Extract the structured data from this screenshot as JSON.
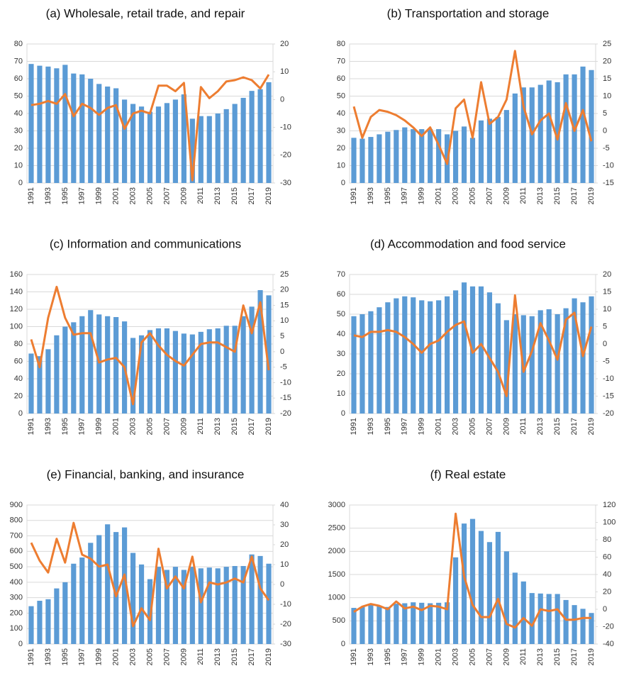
{
  "chart_data": [
    {
      "type": "combo",
      "title": "(a) Wholesale, retail trade, and repair",
      "categories": [
        "1991",
        null,
        "1993",
        null,
        "1995",
        null,
        "1997",
        null,
        "1999",
        null,
        "2001",
        null,
        "2003",
        null,
        "2005",
        null,
        "2007",
        null,
        "2009",
        null,
        "2011",
        null,
        "2013",
        null,
        "2015",
        null,
        "2017",
        null,
        "2019"
      ],
      "series": [
        {
          "color": "#5b9bd5",
          "values": [
            68.5,
            67.5,
            67,
            66,
            68,
            63,
            62.5,
            60,
            57,
            55.5,
            54.5,
            48,
            45.5,
            44,
            41,
            44,
            46,
            48,
            51,
            37,
            38.5,
            38.5,
            40,
            42.5,
            45.5,
            49,
            53,
            54,
            58
          ]
        },
        {
          "color": "#ed7d31",
          "axis": "y2",
          "values": [
            -2,
            -1.5,
            -0.5,
            -1.5,
            2,
            -6,
            -1.5,
            -3,
            -5.5,
            -3,
            -2,
            -10.5,
            -5,
            -4,
            -5,
            5,
            5,
            3,
            6,
            -29,
            4.5,
            0.5,
            3,
            6.5,
            7,
            8,
            7,
            4,
            9
          ]
        }
      ],
      "ylim": [
        0,
        80
      ],
      "yticks": [
        0,
        10,
        20,
        30,
        40,
        50,
        60,
        70,
        80
      ],
      "y2lim": [
        -30,
        20
      ],
      "y2ticks": [
        -30,
        -20,
        -10,
        0,
        10,
        20
      ],
      "grid": true
    },
    {
      "type": "combo",
      "title": "(b) Transportation and storage",
      "categories": [
        "1991",
        null,
        "1993",
        null,
        "1995",
        null,
        "1997",
        null,
        "1999",
        null,
        "2001",
        null,
        "2003",
        null,
        "2005",
        null,
        "2007",
        null,
        "2009",
        null,
        "2011",
        null,
        "2013",
        null,
        "2015",
        null,
        "2017",
        null,
        "2019"
      ],
      "series": [
        {
          "color": "#5b9bd5",
          "values": [
            26,
            25.5,
            26.5,
            28,
            29.5,
            30.5,
            32,
            31,
            31,
            31,
            31,
            28,
            30,
            32.5,
            26,
            36,
            37,
            38,
            42,
            51.5,
            55,
            55,
            56.5,
            59,
            58,
            62.5,
            62.5,
            67,
            65
          ]
        },
        {
          "color": "#ed7d31",
          "axis": "y2",
          "values": [
            7,
            -2,
            4,
            6,
            5.5,
            4.5,
            3,
            1,
            -1.5,
            1,
            -4,
            -9.5,
            6.5,
            9,
            -2,
            14,
            2,
            4,
            9,
            23,
            7,
            -1,
            3,
            5,
            -2.5,
            8,
            0,
            6,
            -3
          ]
        }
      ],
      "ylim": [
        0,
        80
      ],
      "yticks": [
        0,
        10,
        20,
        30,
        40,
        50,
        60,
        70,
        80
      ],
      "y2lim": [
        -15,
        25
      ],
      "y2ticks": [
        -15,
        -10,
        -5,
        0,
        5,
        10,
        15,
        20,
        25
      ],
      "grid": true
    },
    {
      "type": "combo",
      "title": "(c) Information and communications",
      "categories": [
        "1991",
        null,
        "1993",
        null,
        "1995",
        null,
        "1997",
        null,
        "1999",
        null,
        "2001",
        null,
        "2003",
        null,
        "2005",
        null,
        "2007",
        null,
        "2009",
        null,
        "2011",
        null,
        "2013",
        null,
        "2015",
        null,
        "2017",
        null,
        "2019"
      ],
      "series": [
        {
          "color": "#5b9bd5",
          "values": [
            69,
            66,
            74,
            90,
            100,
            105,
            112,
            119,
            114,
            112,
            111,
            106,
            87,
            90,
            96,
            98,
            98,
            95,
            92,
            91,
            94,
            97,
            98,
            101,
            101,
            112,
            123,
            142,
            136
          ]
        },
        {
          "color": "#ed7d31",
          "axis": "y2",
          "values": [
            4,
            -5,
            11,
            21,
            11,
            5.5,
            6,
            6,
            -3.5,
            -2.5,
            -2,
            -5,
            -17,
            3,
            6,
            2,
            -1,
            -3,
            -4.5,
            -1,
            2.5,
            3,
            3,
            1.5,
            0,
            15,
            6,
            16,
            -6
          ]
        }
      ],
      "ylim": [
        0,
        160
      ],
      "yticks": [
        0,
        20,
        40,
        60,
        80,
        100,
        120,
        140,
        160
      ],
      "y2lim": [
        -20,
        25
      ],
      "y2ticks": [
        -20,
        -15,
        -10,
        -5,
        0,
        5,
        10,
        15,
        20,
        25
      ],
      "grid": true
    },
    {
      "type": "combo",
      "title": "(d) Accommodation and food service",
      "categories": [
        "1991",
        null,
        "1993",
        null,
        "1995",
        null,
        "1997",
        null,
        "1999",
        null,
        "2001",
        null,
        "2003",
        null,
        "2005",
        null,
        "2007",
        null,
        "2009",
        null,
        "2011",
        null,
        "2013",
        null,
        "2015",
        null,
        "2017",
        null,
        "2019"
      ],
      "series": [
        {
          "color": "#5b9bd5",
          "values": [
            49,
            50,
            51.5,
            53.5,
            56,
            58,
            59,
            58.5,
            57,
            56.5,
            57,
            59,
            62,
            66,
            64,
            64,
            61,
            55.5,
            47,
            50,
            49.5,
            49,
            52,
            52.5,
            50,
            53,
            58,
            56,
            59
          ]
        },
        {
          "color": "#ed7d31",
          "axis": "y2",
          "values": [
            2.5,
            2,
            3.5,
            3.5,
            4,
            3.5,
            2,
            0,
            -2.5,
            0,
            1,
            3.5,
            5.5,
            6.5,
            -2.5,
            0,
            -4,
            -8,
            -15,
            14,
            -8,
            -2,
            6,
            1,
            -4.5,
            7,
            9,
            -3.5,
            5
          ]
        }
      ],
      "ylim": [
        0,
        70
      ],
      "yticks": [
        0,
        10,
        20,
        30,
        40,
        50,
        60,
        70
      ],
      "y2lim": [
        -20,
        20
      ],
      "y2ticks": [
        -20,
        -15,
        -10,
        -5,
        0,
        5,
        10,
        15,
        20
      ],
      "grid": true
    },
    {
      "type": "combo",
      "title": "(e) Financial, banking, and insurance",
      "categories": [
        "1991",
        null,
        "1993",
        null,
        "1995",
        null,
        "1997",
        null,
        "1999",
        null,
        "2001",
        null,
        "2003",
        null,
        "2005",
        null,
        "2007",
        null,
        "2009",
        null,
        "2011",
        null,
        "2013",
        null,
        "2015",
        null,
        "2017",
        null,
        "2019"
      ],
      "series": [
        {
          "color": "#5b9bd5",
          "values": [
            245,
            280,
            290,
            360,
            400,
            520,
            560,
            655,
            705,
            775,
            725,
            755,
            590,
            515,
            420,
            500,
            480,
            500,
            480,
            500,
            490,
            495,
            490,
            500,
            505,
            505,
            580,
            570,
            520
          ]
        },
        {
          "color": "#ed7d31",
          "axis": "y2",
          "values": [
            21,
            12,
            6,
            23,
            11,
            31,
            15,
            13,
            9,
            10,
            -6,
            5,
            -21,
            -12,
            -18,
            18,
            -2,
            4,
            -2,
            14,
            -9,
            1,
            0,
            1,
            3,
            1,
            14,
            -2,
            -8
          ]
        }
      ],
      "ylim": [
        0,
        900
      ],
      "yticks": [
        0,
        100,
        200,
        300,
        400,
        500,
        600,
        700,
        800,
        900
      ],
      "y2lim": [
        -30,
        40
      ],
      "y2ticks": [
        -30,
        -20,
        -10,
        0,
        10,
        20,
        30,
        40
      ],
      "grid": true
    },
    {
      "type": "combo",
      "title": "(f) Real estate",
      "categories": [
        "1991",
        null,
        "1993",
        null,
        "1995",
        null,
        "1997",
        null,
        "1999",
        null,
        "2001",
        null,
        "2003",
        null,
        "2005",
        null,
        "2007",
        null,
        "2009",
        null,
        "2011",
        null,
        "2013",
        null,
        "2015",
        null,
        "2017",
        null,
        "2019"
      ],
      "series": [
        {
          "color": "#5b9bd5",
          "values": [
            780,
            800,
            850,
            820,
            800,
            870,
            880,
            900,
            890,
            880,
            890,
            900,
            1870,
            2600,
            2700,
            2440,
            2200,
            2420,
            2000,
            1540,
            1350,
            1100,
            1090,
            1080,
            1080,
            950,
            840,
            760,
            670
          ]
        },
        {
          "color": "#ed7d31",
          "axis": "y2",
          "values": [
            -3,
            3,
            6,
            4,
            0,
            9,
            1,
            3,
            -1,
            4,
            3,
            0,
            110,
            38,
            5,
            -9,
            -9,
            12,
            -17,
            -21,
            -10,
            -19,
            0,
            -2,
            0,
            -12,
            -12,
            -10,
            -10
          ]
        }
      ],
      "ylim": [
        0,
        3000
      ],
      "yticks": [
        0,
        500,
        1000,
        1500,
        2000,
        2500,
        3000
      ],
      "y2lim": [
        -40,
        120
      ],
      "y2ticks": [
        -40,
        -20,
        0,
        20,
        40,
        60,
        80,
        100,
        120
      ],
      "grid": true
    }
  ]
}
